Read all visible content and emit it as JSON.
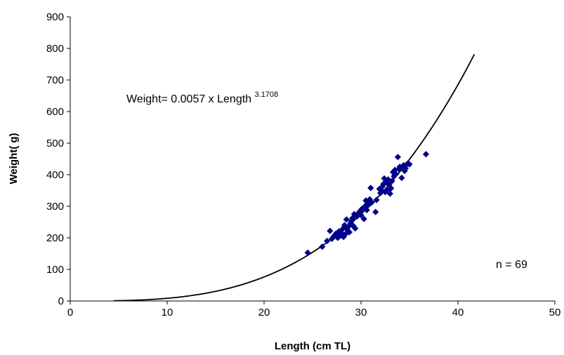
{
  "chart_data": {
    "type": "scatter",
    "xlabel": "Length (cm TL)",
    "ylabel": "Weight( g)",
    "xlim": [
      0,
      50
    ],
    "ylim": [
      0,
      900
    ],
    "x_ticks": [
      "0",
      "10",
      "20",
      "30",
      "40",
      "50"
    ],
    "y_ticks": [
      "0",
      "100",
      "200",
      "300",
      "400",
      "500",
      "600",
      "700",
      "800",
      "900"
    ],
    "grid": false,
    "legend": "none",
    "colors": {
      "points": "#00008B",
      "curve": "#000000"
    },
    "equation": {
      "prefix": "Weight= 0.0057 x Length",
      "exponent": "3.1708"
    },
    "sample_size": "n = 69",
    "fit": {
      "a": 0.0057,
      "b": 3.1708,
      "x_start": 4.5,
      "x_end": 41.7
    },
    "series": [
      {
        "points": [
          [
            24.5,
            153
          ],
          [
            26.0,
            172
          ],
          [
            26.5,
            190
          ],
          [
            26.8,
            222
          ],
          [
            27.0,
            197
          ],
          [
            27.2,
            205
          ],
          [
            27.4,
            213
          ],
          [
            27.6,
            200
          ],
          [
            27.7,
            220
          ],
          [
            27.9,
            207
          ],
          [
            28.0,
            215
          ],
          [
            28.1,
            228
          ],
          [
            28.2,
            203
          ],
          [
            28.3,
            240
          ],
          [
            28.4,
            212
          ],
          [
            28.5,
            258
          ],
          [
            28.6,
            225
          ],
          [
            28.7,
            235
          ],
          [
            28.8,
            218
          ],
          [
            28.9,
            245
          ],
          [
            29.0,
            252
          ],
          [
            29.1,
            262
          ],
          [
            29.2,
            238
          ],
          [
            29.3,
            275
          ],
          [
            29.4,
            230
          ],
          [
            29.6,
            268
          ],
          [
            29.8,
            280
          ],
          [
            29.9,
            285
          ],
          [
            30.0,
            272
          ],
          [
            30.1,
            292
          ],
          [
            30.3,
            260
          ],
          [
            30.4,
            300
          ],
          [
            30.5,
            318
          ],
          [
            30.6,
            288
          ],
          [
            30.7,
            310
          ],
          [
            30.8,
            305
          ],
          [
            30.9,
            322
          ],
          [
            31.0,
            358
          ],
          [
            31.1,
            312
          ],
          [
            31.5,
            282
          ],
          [
            31.6,
            320
          ],
          [
            31.9,
            355
          ],
          [
            32.0,
            342
          ],
          [
            32.1,
            350
          ],
          [
            32.2,
            362
          ],
          [
            32.3,
            370
          ],
          [
            32.4,
            388
          ],
          [
            32.5,
            345
          ],
          [
            32.6,
            375
          ],
          [
            32.7,
            352
          ],
          [
            32.8,
            385
          ],
          [
            32.9,
            368
          ],
          [
            33.0,
            340
          ],
          [
            33.1,
            357
          ],
          [
            33.2,
            380
          ],
          [
            33.3,
            408
          ],
          [
            33.4,
            395
          ],
          [
            33.5,
            415
          ],
          [
            33.6,
            402
          ],
          [
            33.8,
            456
          ],
          [
            33.9,
            418
          ],
          [
            34.0,
            425
          ],
          [
            34.2,
            390
          ],
          [
            34.4,
            430
          ],
          [
            34.5,
            412
          ],
          [
            34.6,
            420
          ],
          [
            34.8,
            435
          ],
          [
            35.0,
            433
          ],
          [
            36.7,
            465
          ]
        ]
      }
    ]
  }
}
